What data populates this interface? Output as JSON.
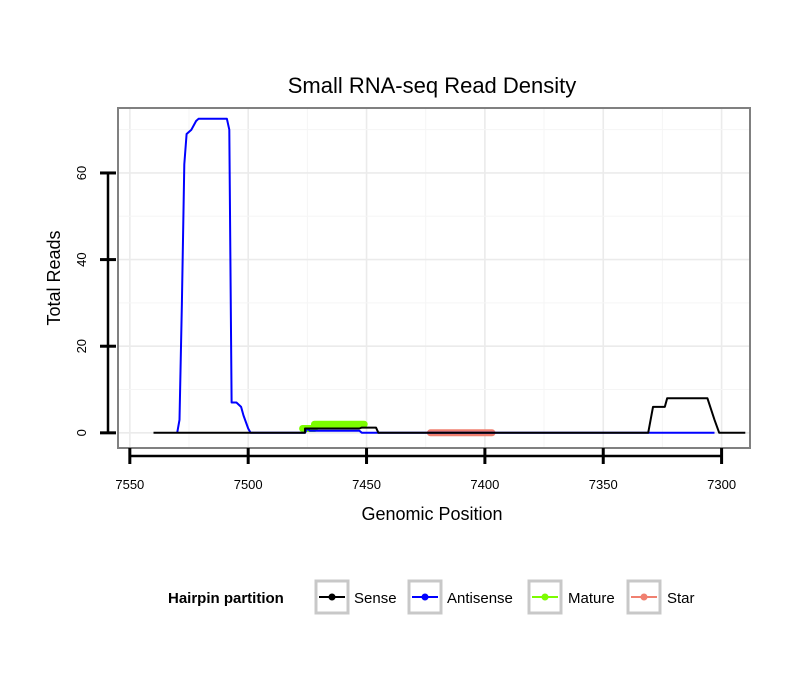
{
  "chart_data": {
    "type": "line",
    "title": "Small RNA-seq Read Density",
    "xlabel": "Genomic Position",
    "ylabel": "Total Reads",
    "x_reversed": true,
    "xlim": [
      7555,
      7288
    ],
    "ylim": [
      -3.5,
      75
    ],
    "x_ticks": [
      7550,
      7500,
      7450,
      7400,
      7350,
      7300
    ],
    "x_tick_labels": [
      "7550",
      "7500",
      "7450",
      "7400",
      "7350",
      "7300"
    ],
    "y_ticks": [
      0,
      20,
      40,
      60
    ],
    "y_tick_labels": [
      "0",
      "20",
      "40",
      "60"
    ],
    "grid": true,
    "legend": {
      "title": "Hairpin partition",
      "position": "bottom",
      "entries": [
        {
          "label": "Sense",
          "color": "#000000"
        },
        {
          "label": "Antisense",
          "color": "#0000ff"
        },
        {
          "label": "Mature",
          "color": "#7cfc00"
        },
        {
          "label": "Star",
          "color": "#f08070"
        }
      ]
    },
    "series": [
      {
        "name": "Sense",
        "color": "#000000",
        "x": [
          7540,
          7476,
          7476,
          7453,
          7452,
          7446,
          7445,
          7331,
          7329,
          7324,
          7323,
          7306,
          7303,
          7301,
          7290
        ],
        "y": [
          0,
          0,
          1,
          1,
          1.2,
          1.2,
          0,
          0,
          6,
          6,
          8,
          8,
          3,
          0,
          0
        ]
      },
      {
        "name": "Antisense",
        "color": "#0000ff",
        "x": [
          7530,
          7529,
          7528,
          7527,
          7526,
          7524,
          7522,
          7521,
          7509,
          7508,
          7507,
          7505,
          7503,
          7502,
          7500,
          7499,
          7476,
          7475,
          7474,
          7453,
          7452,
          7303
        ],
        "y": [
          0,
          3,
          30,
          62,
          69,
          70,
          72,
          72.5,
          72.5,
          70,
          7,
          7,
          6,
          4,
          1,
          0,
          0,
          1,
          0.5,
          0.5,
          0,
          0
        ]
      },
      {
        "name": "Mature",
        "color": "#7cfc00",
        "x": [
          7477,
          7472,
          7472,
          7451
        ],
        "y": [
          1,
          1,
          2,
          2
        ]
      },
      {
        "name": "Star",
        "color": "#f08070",
        "x": [
          7423,
          7397
        ],
        "y": [
          0,
          0
        ]
      }
    ]
  }
}
